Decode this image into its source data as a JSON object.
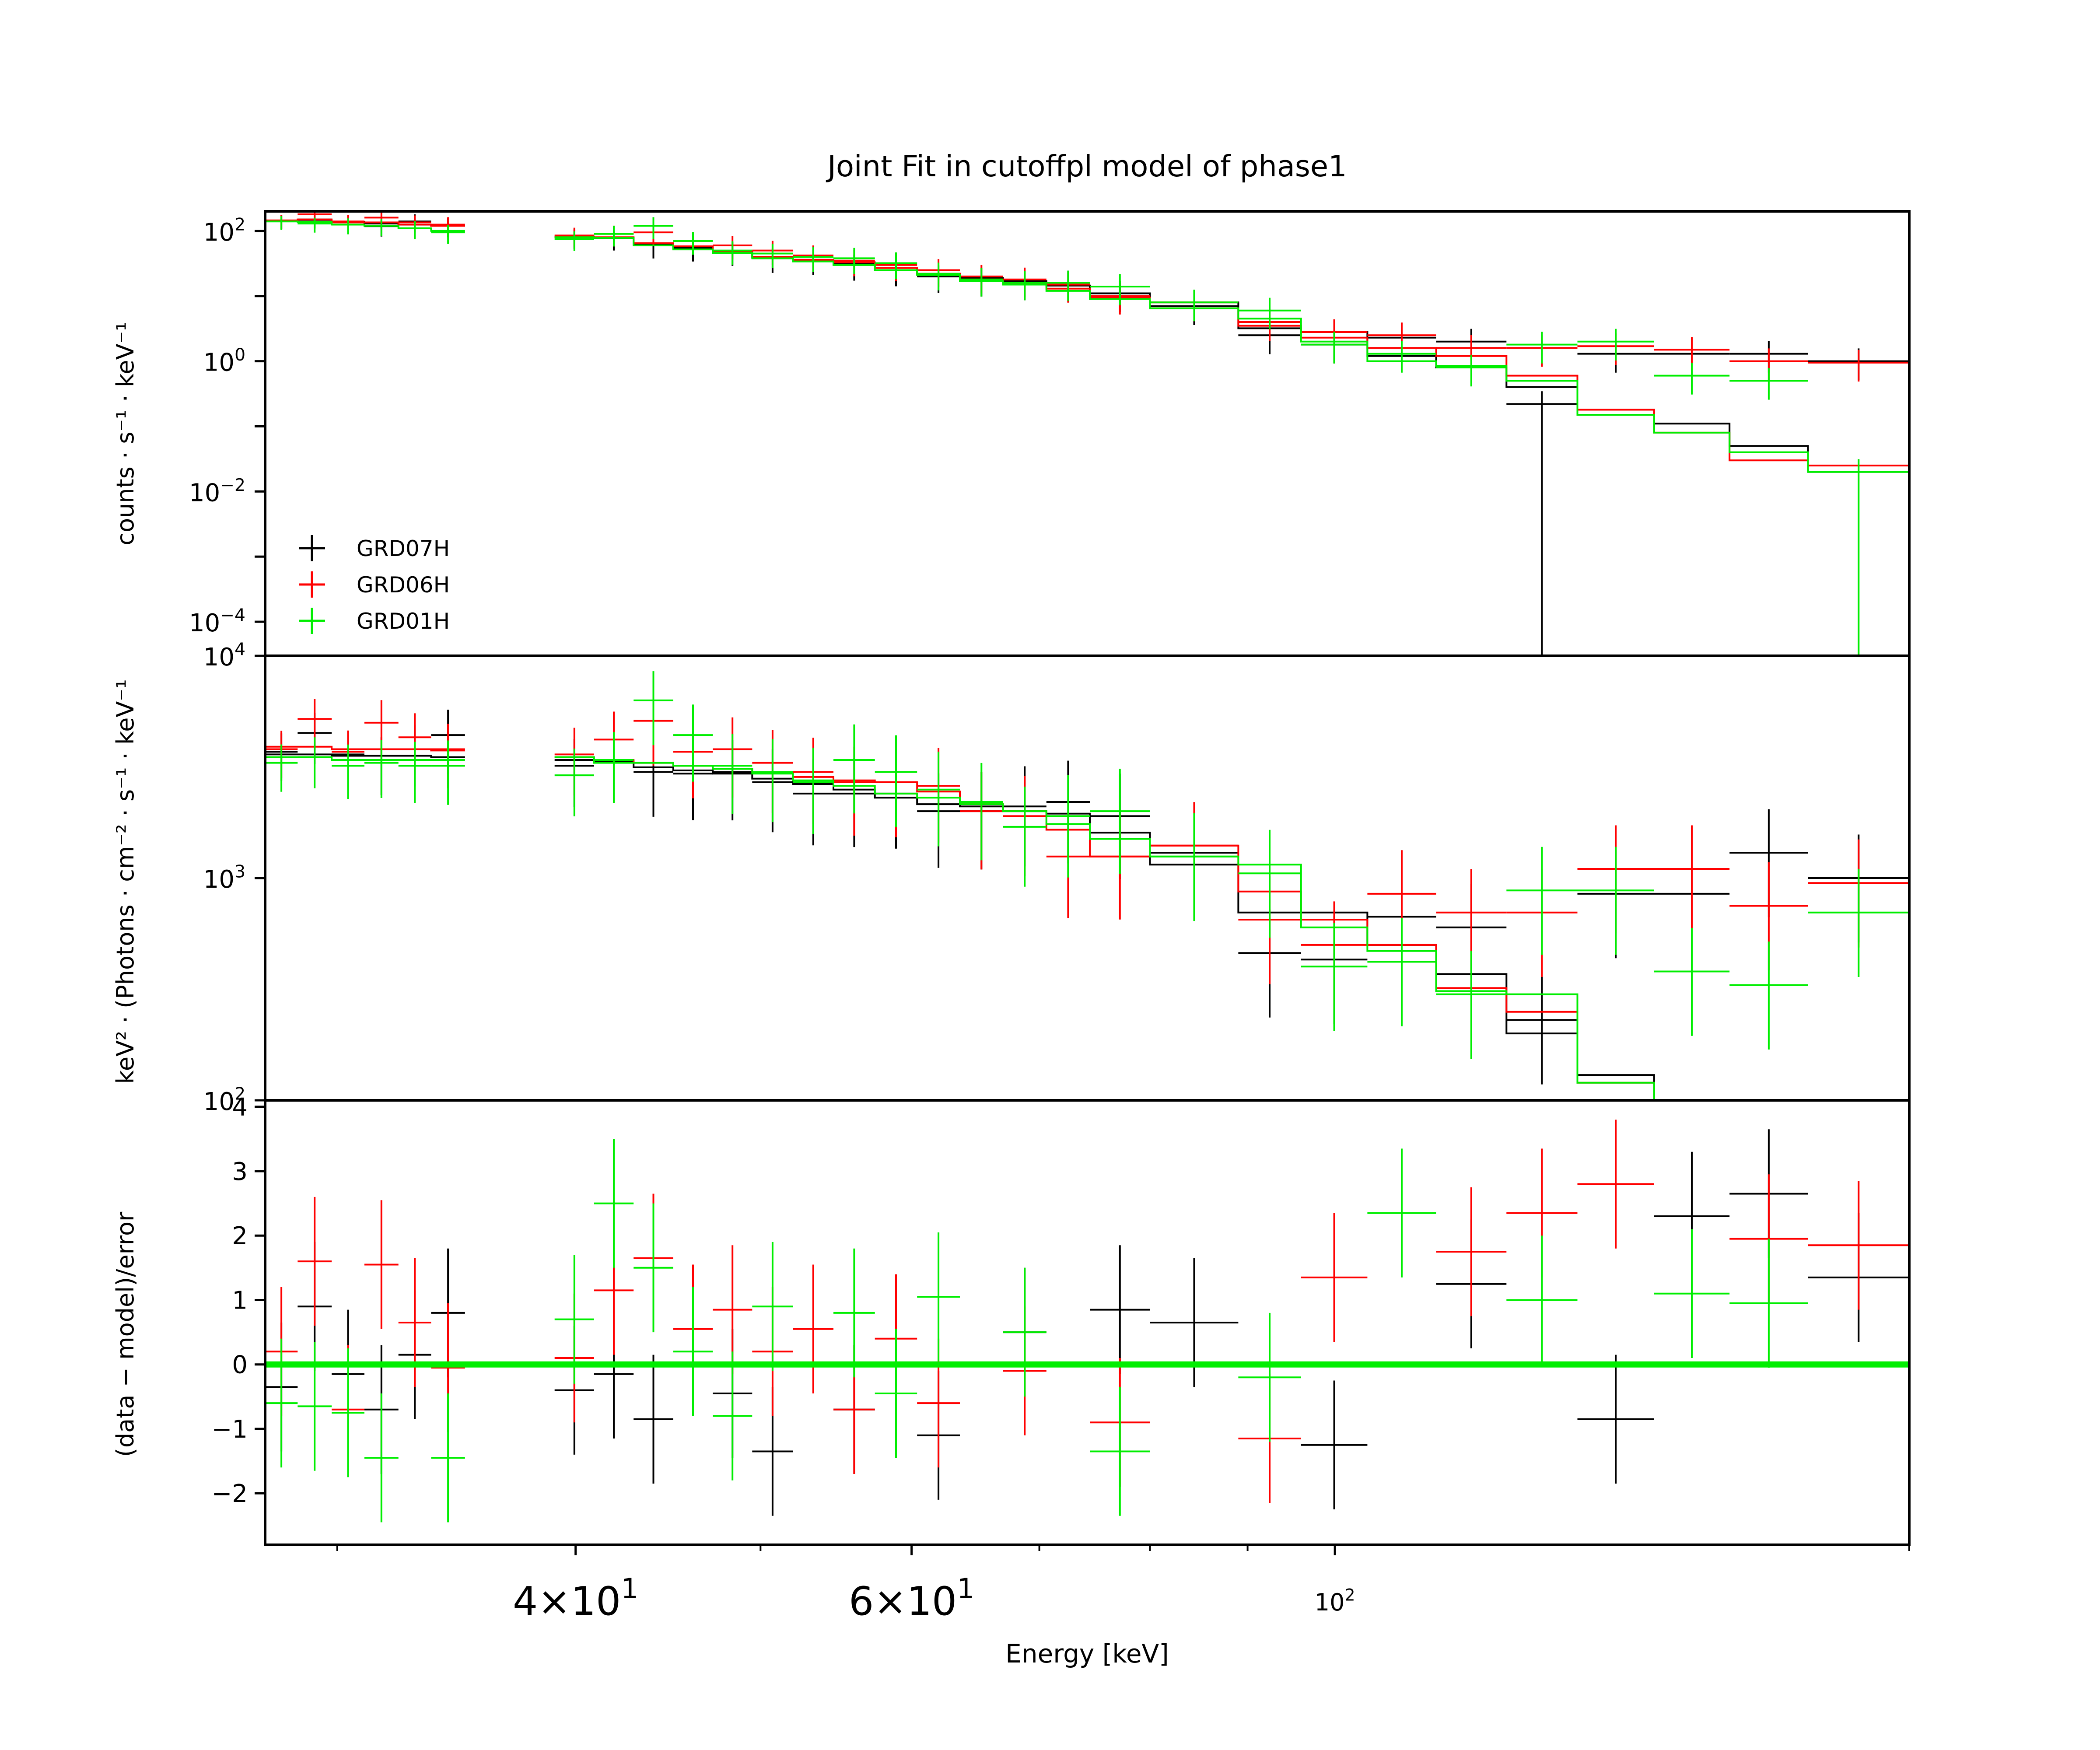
{
  "chart_data": {
    "type": "line",
    "title": "Joint Fit  in cutoffpl model of phase1",
    "xlabel": "Energy [keV]",
    "xscale": "log",
    "xlim": [
      27.5,
      200
    ],
    "x_tick_labels": [
      {
        "value": 40,
        "mant": "4",
        "exp": "1"
      },
      {
        "value": 60,
        "mant": "6",
        "exp": "1"
      },
      {
        "value": 100,
        "mant": "10",
        "exp": "2"
      }
    ],
    "colors": {
      "GRD07H": "#000000",
      "GRD06H": "#ff0000",
      "GRD01H": "#00ee00"
    },
    "legend": {
      "placement": "lower-left",
      "entries": [
        "GRD07H",
        "GRD06H",
        "GRD01H"
      ]
    },
    "panels": [
      {
        "id": "counts",
        "ylabel": "counts · s⁻¹ · keV⁻¹",
        "yscale": "log",
        "ylim": [
          3e-05,
          200
        ],
        "y_ticks": [
          {
            "value": 100,
            "exp": "2"
          },
          {
            "value": 1,
            "exp": "0"
          },
          {
            "value": 0.01,
            "exp": "−2"
          },
          {
            "value": 0.0001,
            "exp": "−4"
          }
        ],
        "series": [
          {
            "name": "GRD07H",
            "bins": [
              [
                27.5,
                28.6
              ],
              [
                28.6,
                29.8
              ],
              [
                29.8,
                31.0
              ],
              [
                31.0,
                32.3
              ],
              [
                32.3,
                33.6
              ],
              [
                33.6,
                35.0
              ],
              [
                39.0,
                40.9
              ],
              [
                40.9,
                42.9
              ],
              [
                42.9,
                45.0
              ],
              [
                45.0,
                47.2
              ],
              [
                47.2,
                49.5
              ],
              [
                49.5,
                52.0
              ],
              [
                52.0,
                54.6
              ],
              [
                54.6,
                57.4
              ],
              [
                57.4,
                60.4
              ],
              [
                60.4,
                63.6
              ],
              [
                63.6,
                67.0
              ],
              [
                67.0,
                70.6
              ],
              [
                70.6,
                74.4
              ],
              [
                74.4,
                80.0
              ],
              [
                80.0,
                89.0
              ],
              [
                89.0,
                96.0
              ],
              [
                96.0,
                104.0
              ],
              [
                104.0,
                113.0
              ],
              [
                113.0,
                123.0
              ],
              [
                123.0,
                134.0
              ],
              [
                134.0,
                147.0
              ],
              [
                147.0,
                161.0
              ],
              [
                161.0,
                177.0
              ],
              [
                177.0,
                200.0
              ]
            ],
            "data": [
              143,
              150,
              135,
              118,
              140,
              120,
              80,
              78,
              60,
              55,
              48,
              38,
              36,
              30,
              25,
              20,
              18,
              16,
              16,
              11,
              7,
              2.5,
              1.8,
              2.3,
              2.0,
              0.22,
              1.3,
              1.3,
              1.3,
              1.0
            ],
            "model": [
              143,
              140,
              138,
              130,
              125,
              120,
              82,
              78,
              62,
              55,
              48,
              40,
              36,
              32,
              25,
              22,
              19,
              17,
              14.5,
              11,
              8,
              3.2,
              2.8,
              1.2,
              0.8,
              0.4,
              0.15,
              0.11,
              0.05,
              0.02
            ]
          },
          {
            "name": "GRD06H",
            "bins": [
              [
                27.5,
                28.6
              ],
              [
                28.6,
                29.8
              ],
              [
                29.8,
                31.0
              ],
              [
                31.0,
                32.3
              ],
              [
                32.3,
                33.6
              ],
              [
                33.6,
                35.0
              ],
              [
                39.0,
                40.9
              ],
              [
                40.9,
                42.9
              ],
              [
                42.9,
                45.0
              ],
              [
                45.0,
                47.2
              ],
              [
                47.2,
                49.5
              ],
              [
                49.5,
                52.0
              ],
              [
                52.0,
                54.6
              ],
              [
                54.6,
                57.4
              ],
              [
                57.4,
                60.4
              ],
              [
                60.4,
                63.6
              ],
              [
                63.6,
                67.0
              ],
              [
                67.0,
                70.6
              ],
              [
                70.6,
                74.4
              ],
              [
                74.4,
                80.0
              ],
              [
                80.0,
                89.0
              ],
              [
                89.0,
                96.0
              ],
              [
                96.0,
                104.0
              ],
              [
                104.0,
                113.0
              ],
              [
                113.0,
                123.0
              ],
              [
                123.0,
                134.0
              ],
              [
                134.0,
                147.0
              ],
              [
                147.0,
                161.0
              ],
              [
                161.0,
                177.0
              ],
              [
                177.0,
                200.0
              ]
            ],
            "data": [
              145,
              180,
              140,
              160,
              135,
              125,
              85,
              90,
              95,
              70,
              60,
              50,
              42,
              35,
              30,
              25,
              20,
              18,
              15,
              10,
              8,
              4,
              2.8,
              2.5,
              1.6,
              1.6,
              1.7,
              1.5,
              1.0,
              0.95
            ],
            "model": [
              143,
              150,
              135,
              135,
              125,
              120,
              82,
              80,
              65,
              58,
              48,
              40,
              36,
              33,
              27,
              22,
              18,
              16,
              13,
              9.5,
              6.5,
              3.5,
              2.3,
              1.6,
              1.2,
              0.6,
              0.18,
              0.08,
              0.03,
              0.025
            ]
          },
          {
            "name": "GRD01H",
            "bins": [
              [
                27.5,
                28.6
              ],
              [
                28.6,
                29.8
              ],
              [
                29.8,
                31.0
              ],
              [
                31.0,
                32.3
              ],
              [
                32.3,
                33.6
              ],
              [
                33.6,
                35.0
              ],
              [
                39.0,
                40.9
              ],
              [
                40.9,
                42.9
              ],
              [
                42.9,
                45.0
              ],
              [
                45.0,
                47.2
              ],
              [
                47.2,
                49.5
              ],
              [
                49.5,
                52.0
              ],
              [
                52.0,
                54.6
              ],
              [
                54.6,
                57.4
              ],
              [
                57.4,
                60.4
              ],
              [
                60.4,
                63.6
              ],
              [
                63.6,
                67.0
              ],
              [
                67.0,
                70.6
              ],
              [
                70.6,
                74.4
              ],
              [
                74.4,
                80.0
              ],
              [
                80.0,
                89.0
              ],
              [
                89.0,
                96.0
              ],
              [
                96.0,
                104.0
              ],
              [
                104.0,
                113.0
              ],
              [
                113.0,
                123.0
              ],
              [
                123.0,
                134.0
              ],
              [
                134.0,
                147.0
              ],
              [
                147.0,
                161.0
              ],
              [
                161.0,
                177.0
              ],
              [
                177.0,
                200.0
              ]
            ],
            "data": [
              140,
              130,
              125,
              120,
              110,
              95,
              75,
              90,
              120,
              70,
              50,
              45,
              40,
              38,
              32,
              22,
              18,
              16,
              16,
              14,
              8,
              6,
              1.8,
              1.3,
              0.8,
              1.8,
              2.0,
              0.6,
              0.5,
              0.02
            ],
            "model": [
              140,
              138,
              125,
              120,
              110,
              100,
              80,
              78,
              60,
              52,
              46,
              38,
              34,
              30,
              25,
              21,
              17,
              15,
              12,
              9,
              6.5,
              4.5,
              2.0,
              1.0,
              0.85,
              0.5,
              0.15,
              0.08,
              0.04,
              0.02
            ]
          }
        ]
      },
      {
        "id": "unfolded",
        "ylabel": "keV² · (Photons · cm⁻² · s⁻¹ · keV⁻¹",
        "yscale": "log",
        "ylim": [
          100,
          10000
        ],
        "y_ticks": [
          {
            "value": 10000,
            "exp": "4"
          },
          {
            "value": 1000,
            "exp": "3"
          },
          {
            "value": 100,
            "exp": "2"
          }
        ],
        "series": [
          {
            "name": "GRD07H",
            "data": [
              3700,
              4500,
              3600,
              3400,
              3800,
              4400,
              3200,
              3400,
              3000,
              2950,
              3000,
              2700,
              2400,
              2400,
              2400,
              2000,
              2000,
              2100,
              2200,
              1900,
              1300,
              460,
              430,
              670,
              600,
              230,
              850,
              850,
              1300,
              1000
            ],
            "model": [
              3600,
              3600,
              3550,
              3550,
              3550,
              3500,
              3400,
              3350,
              3150,
              3050,
              2950,
              2800,
              2650,
              2500,
              2300,
              2150,
              2100,
              2000,
              1950,
              1600,
              1150,
              700,
              700,
              500,
              370,
              200,
              130,
              90,
              60,
              50
            ]
          },
          {
            "name": "GRD06H",
            "data": [
              3800,
              5200,
              3700,
              5000,
              4300,
              3800,
              3600,
              4200,
              5100,
              3700,
              3800,
              3300,
              3000,
              2700,
              2700,
              2600,
              2000,
              1900,
              1250,
              1250,
              1400,
              650,
              500,
              850,
              700,
              700,
              1100,
              1100,
              750,
              950
            ],
            "model": [
              3900,
              3900,
              3800,
              3800,
              3800,
              3750,
              3500,
              3400,
              3300,
              3200,
              3100,
              3000,
              2850,
              2750,
              2700,
              2450,
              2150,
              2000,
              1650,
              1250,
              1400,
              870,
              650,
              500,
              320,
              250,
              120,
              90,
              60,
              50
            ]
          },
          {
            "name": "GRD01H",
            "data": [
              3300,
              3500,
              3200,
              3300,
              3200,
              3200,
              2900,
              3400,
              6300,
              4400,
              3200,
              3000,
              2700,
              3400,
              3000,
              2500,
              2200,
              1700,
              1900,
              2000,
              1250,
              1050,
              400,
              420,
              300,
              880,
              880,
              380,
              330,
              700
            ],
            "model": [
              3500,
              3500,
              3400,
              3400,
              3400,
              3400,
              3500,
              3300,
              3300,
              3200,
              3100,
              2950,
              2750,
              2600,
              2400,
              2300,
              2150,
              2000,
              1750,
              1500,
              1250,
              1150,
              600,
              470,
              310,
              300,
              120,
              80,
              50,
              40
            ]
          }
        ]
      },
      {
        "id": "residuals",
        "ylabel": "(data − model)/error",
        "yscale": "linear",
        "ylim": [
          -2.8,
          4.1
        ],
        "y_ticks": [
          {
            "value": 4,
            "label": "4"
          },
          {
            "value": 3,
            "label": "3"
          },
          {
            "value": 2,
            "label": "2"
          },
          {
            "value": 1,
            "label": "1"
          },
          {
            "value": 0,
            "label": "0"
          },
          {
            "value": -1,
            "label": "−1"
          },
          {
            "value": -2,
            "label": "−2"
          }
        ],
        "series": [
          {
            "name": "GRD07H",
            "data": [
              -0.35,
              0.9,
              -0.15,
              -0.7,
              0.15,
              0.8,
              -0.4,
              -0.15,
              -0.85,
              -0.45,
              -1.35,
              -0.7,
              -1.1,
              0.5,
              0.85,
              0.65,
              -1.25,
              1.25,
              -0.85,
              2.3,
              2.65,
              1.35
            ]
          },
          {
            "name": "GRD06H",
            "data": [
              0.2,
              1.6,
              -0.7,
              1.55,
              0.65,
              -0.05,
              0.1,
              1.15,
              1.65,
              0.55,
              0.85,
              0.2,
              0.55,
              -0.7,
              0.4,
              -0.6,
              -0.1,
              -0.9,
              -1.15,
              1.35,
              1.75,
              2.35,
              2.8,
              1.95,
              1.85
            ]
          },
          {
            "name": "GRD01H",
            "data": [
              -0.6,
              -0.65,
              -0.75,
              -1.45,
              -1.45,
              0.7,
              2.5,
              1.5,
              0.2,
              -0.8,
              0.9,
              0.8,
              -0.45,
              1.05,
              0.5,
              -1.35,
              -0.2,
              2.35,
              1.0,
              1.1,
              0.95
            ]
          }
        ]
      }
    ]
  }
}
